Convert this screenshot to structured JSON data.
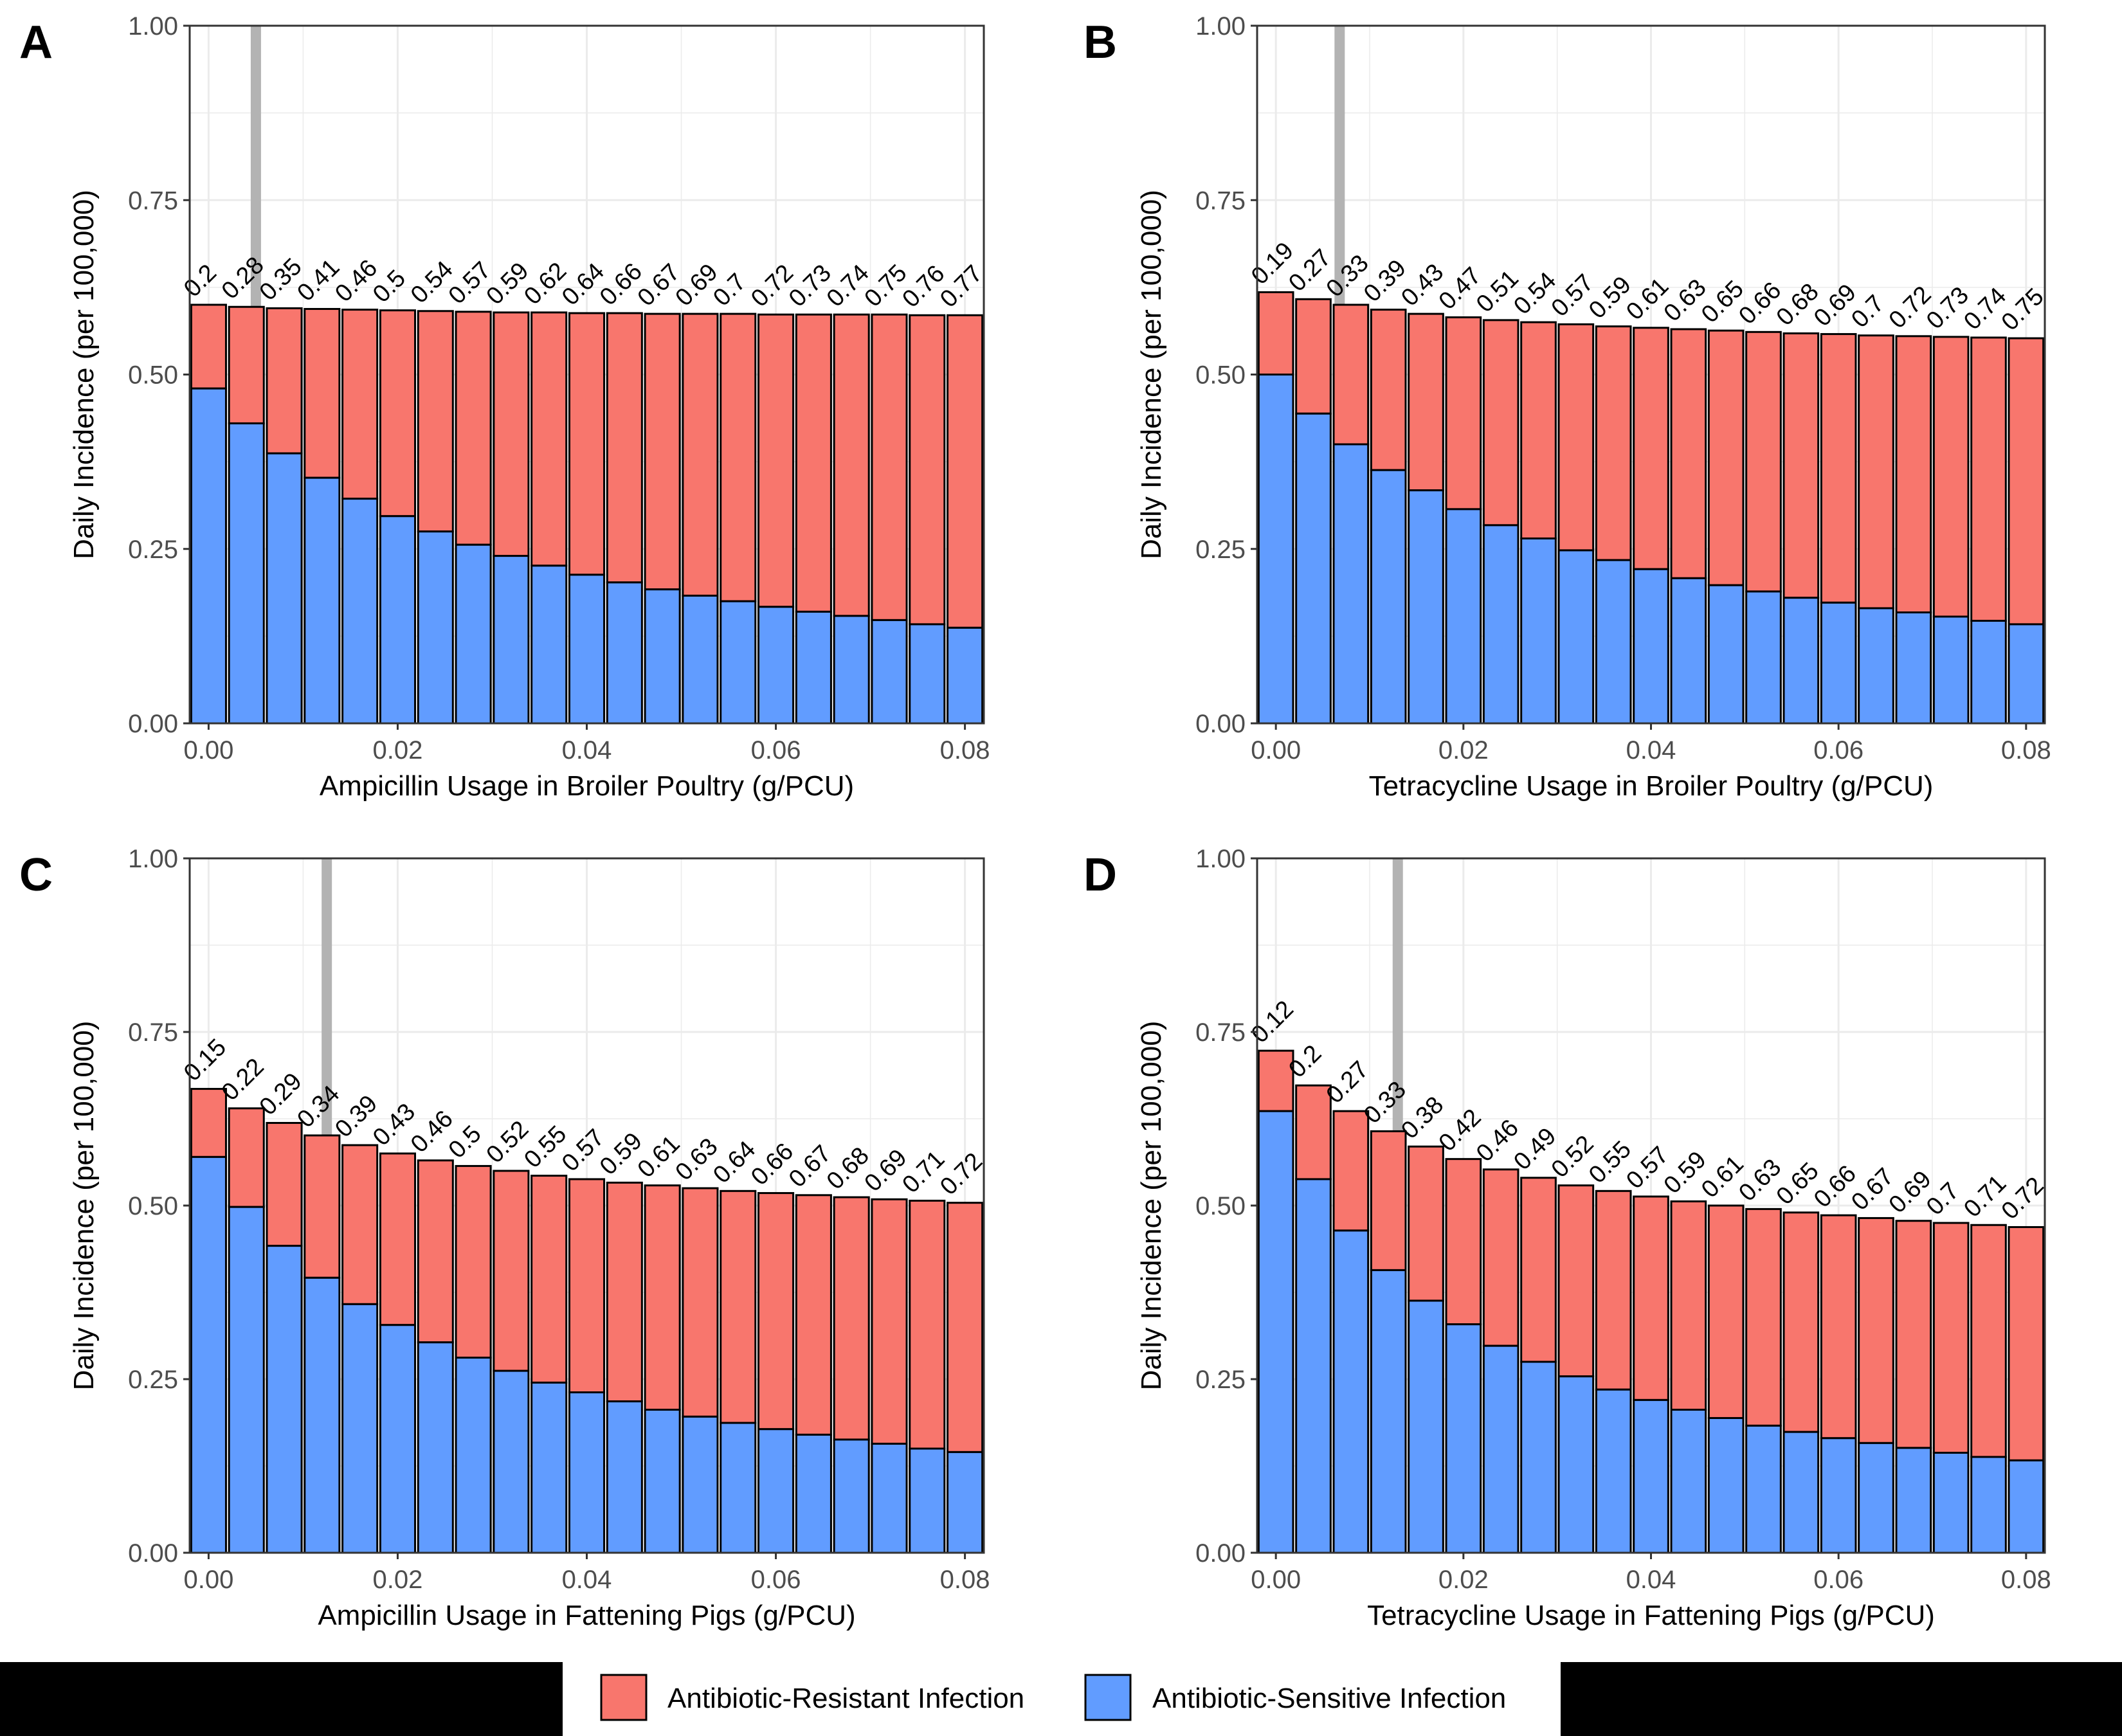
{
  "colors": {
    "resistant": "#F8766D",
    "sensitive": "#619CFF",
    "grid": "#EBEBEB",
    "marker": "#B3B3B3",
    "border": "#333333"
  },
  "legend": {
    "items": [
      {
        "label": "Antibiotic-Resistant Infection",
        "color": "#F8766D"
      },
      {
        "label": "Antibiotic-Sensitive Infection",
        "color": "#619CFF"
      }
    ]
  },
  "chart_data": [
    {
      "type": "bar",
      "panel": "A",
      "stacked": true,
      "xlabel": "Ampicillin Usage in Broiler Poultry (g/PCU)",
      "ylabel": "Daily Incidence (per 100,000)",
      "xlim": [
        -0.002,
        0.082
      ],
      "ylim": [
        0,
        1
      ],
      "xticks": [
        "0.00",
        "0.02",
        "0.04",
        "0.06",
        "0.08"
      ],
      "yticks": [
        "0.00",
        "0.25",
        "0.50",
        "0.75",
        "1.00"
      ],
      "reference_x": 0.005,
      "x": [
        0.0,
        0.004,
        0.008,
        0.012,
        0.016,
        0.02,
        0.024,
        0.028,
        0.032,
        0.036,
        0.04,
        0.044,
        0.048,
        0.052,
        0.056,
        0.06,
        0.064,
        0.068,
        0.072,
        0.076,
        0.08
      ],
      "total": [
        0.6,
        0.597,
        0.595,
        0.594,
        0.593,
        0.592,
        0.591,
        0.59,
        0.589,
        0.589,
        0.588,
        0.588,
        0.587,
        0.587,
        0.587,
        0.586,
        0.586,
        0.586,
        0.586,
        0.585,
        0.585
      ],
      "sensitive": [
        0.48,
        0.43,
        0.387,
        0.352,
        0.322,
        0.297,
        0.275,
        0.256,
        0.24,
        0.226,
        0.213,
        0.202,
        0.192,
        0.183,
        0.175,
        0.167,
        0.16,
        0.154,
        0.148,
        0.142,
        0.137
      ],
      "labels": [
        "0.2",
        "0.28",
        "0.35",
        "0.41",
        "0.46",
        "0.5",
        "0.54",
        "0.57",
        "0.59",
        "0.62",
        "0.64",
        "0.66",
        "0.67",
        "0.69",
        "0.7",
        "0.72",
        "0.73",
        "0.74",
        "0.75",
        "0.76",
        "0.77"
      ]
    },
    {
      "type": "bar",
      "panel": "B",
      "stacked": true,
      "xlabel": "Tetracycline Usage in Broiler Poultry (g/PCU)",
      "ylabel": "Daily Incidence (per 100,000)",
      "xlim": [
        -0.002,
        0.082
      ],
      "ylim": [
        0,
        1
      ],
      "xticks": [
        "0.00",
        "0.02",
        "0.04",
        "0.06",
        "0.08"
      ],
      "yticks": [
        "0.00",
        "0.25",
        "0.50",
        "0.75",
        "1.00"
      ],
      "reference_x": 0.0068,
      "x": [
        0.0,
        0.004,
        0.008,
        0.012,
        0.016,
        0.02,
        0.024,
        0.028,
        0.032,
        0.036,
        0.04,
        0.044,
        0.048,
        0.052,
        0.056,
        0.06,
        0.064,
        0.068,
        0.072,
        0.076,
        0.08
      ],
      "total": [
        0.618,
        0.608,
        0.6,
        0.593,
        0.587,
        0.582,
        0.578,
        0.575,
        0.572,
        0.569,
        0.567,
        0.565,
        0.563,
        0.561,
        0.559,
        0.558,
        0.556,
        0.555,
        0.554,
        0.553,
        0.552
      ],
      "sensitive": [
        0.5,
        0.444,
        0.4,
        0.363,
        0.334,
        0.307,
        0.284,
        0.265,
        0.248,
        0.234,
        0.221,
        0.208,
        0.198,
        0.189,
        0.18,
        0.173,
        0.165,
        0.159,
        0.153,
        0.147,
        0.142
      ],
      "labels": [
        "0.19",
        "0.27",
        "0.33",
        "0.39",
        "0.43",
        "0.47",
        "0.51",
        "0.54",
        "0.57",
        "0.59",
        "0.61",
        "0.63",
        "0.65",
        "0.66",
        "0.68",
        "0.69",
        "0.7",
        "0.72",
        "0.73",
        "0.74",
        "0.75"
      ]
    },
    {
      "type": "bar",
      "panel": "C",
      "stacked": true,
      "xlabel": "Ampicillin Usage in Fattening Pigs (g/PCU)",
      "ylabel": "Daily Incidence (per 100,000)",
      "xlim": [
        -0.002,
        0.082
      ],
      "ylim": [
        0,
        1
      ],
      "xticks": [
        "0.00",
        "0.02",
        "0.04",
        "0.06",
        "0.08"
      ],
      "yticks": [
        "0.00",
        "0.25",
        "0.50",
        "0.75",
        "1.00"
      ],
      "reference_x": 0.0125,
      "x": [
        0.0,
        0.004,
        0.008,
        0.012,
        0.016,
        0.02,
        0.024,
        0.028,
        0.032,
        0.036,
        0.04,
        0.044,
        0.048,
        0.052,
        0.056,
        0.06,
        0.064,
        0.068,
        0.072,
        0.076,
        0.08
      ],
      "total": [
        0.668,
        0.64,
        0.619,
        0.601,
        0.587,
        0.575,
        0.565,
        0.557,
        0.55,
        0.543,
        0.538,
        0.533,
        0.529,
        0.525,
        0.521,
        0.518,
        0.515,
        0.512,
        0.509,
        0.507,
        0.504
      ],
      "sensitive": [
        0.57,
        0.498,
        0.442,
        0.396,
        0.358,
        0.328,
        0.303,
        0.281,
        0.262,
        0.245,
        0.231,
        0.218,
        0.206,
        0.196,
        0.187,
        0.178,
        0.17,
        0.163,
        0.157,
        0.15,
        0.145
      ],
      "labels": [
        "0.15",
        "0.22",
        "0.29",
        "0.34",
        "0.39",
        "0.43",
        "0.46",
        "0.5",
        "0.52",
        "0.55",
        "0.57",
        "0.59",
        "0.61",
        "0.63",
        "0.64",
        "0.66",
        "0.67",
        "0.68",
        "0.69",
        "0.71",
        "0.72"
      ]
    },
    {
      "type": "bar",
      "panel": "D",
      "stacked": true,
      "xlabel": "Tetracycline Usage in Fattening Pigs (g/PCU)",
      "ylabel": "Daily Incidence (per 100,000)",
      "xlim": [
        -0.002,
        0.082
      ],
      "ylim": [
        0,
        1
      ],
      "xticks": [
        "0.00",
        "0.02",
        "0.04",
        "0.06",
        "0.08"
      ],
      "yticks": [
        "0.00",
        "0.25",
        "0.50",
        "0.75",
        "1.00"
      ],
      "reference_x": 0.013,
      "x": [
        0.0,
        0.004,
        0.008,
        0.012,
        0.016,
        0.02,
        0.024,
        0.028,
        0.032,
        0.036,
        0.04,
        0.044,
        0.048,
        0.052,
        0.056,
        0.06,
        0.064,
        0.068,
        0.072,
        0.076,
        0.08
      ],
      "total": [
        0.723,
        0.673,
        0.636,
        0.607,
        0.585,
        0.567,
        0.552,
        0.54,
        0.529,
        0.521,
        0.513,
        0.506,
        0.5,
        0.495,
        0.49,
        0.486,
        0.482,
        0.478,
        0.475,
        0.472,
        0.469
      ],
      "sensitive": [
        0.636,
        0.538,
        0.464,
        0.407,
        0.363,
        0.329,
        0.298,
        0.275,
        0.254,
        0.235,
        0.22,
        0.206,
        0.194,
        0.183,
        0.174,
        0.165,
        0.158,
        0.151,
        0.144,
        0.138,
        0.133
      ],
      "labels": [
        "0.12",
        "0.2",
        "0.27",
        "0.33",
        "0.38",
        "0.42",
        "0.46",
        "0.49",
        "0.52",
        "0.55",
        "0.57",
        "0.59",
        "0.61",
        "0.63",
        "0.65",
        "0.66",
        "0.67",
        "0.69",
        "0.7",
        "0.71",
        "0.72"
      ]
    }
  ]
}
